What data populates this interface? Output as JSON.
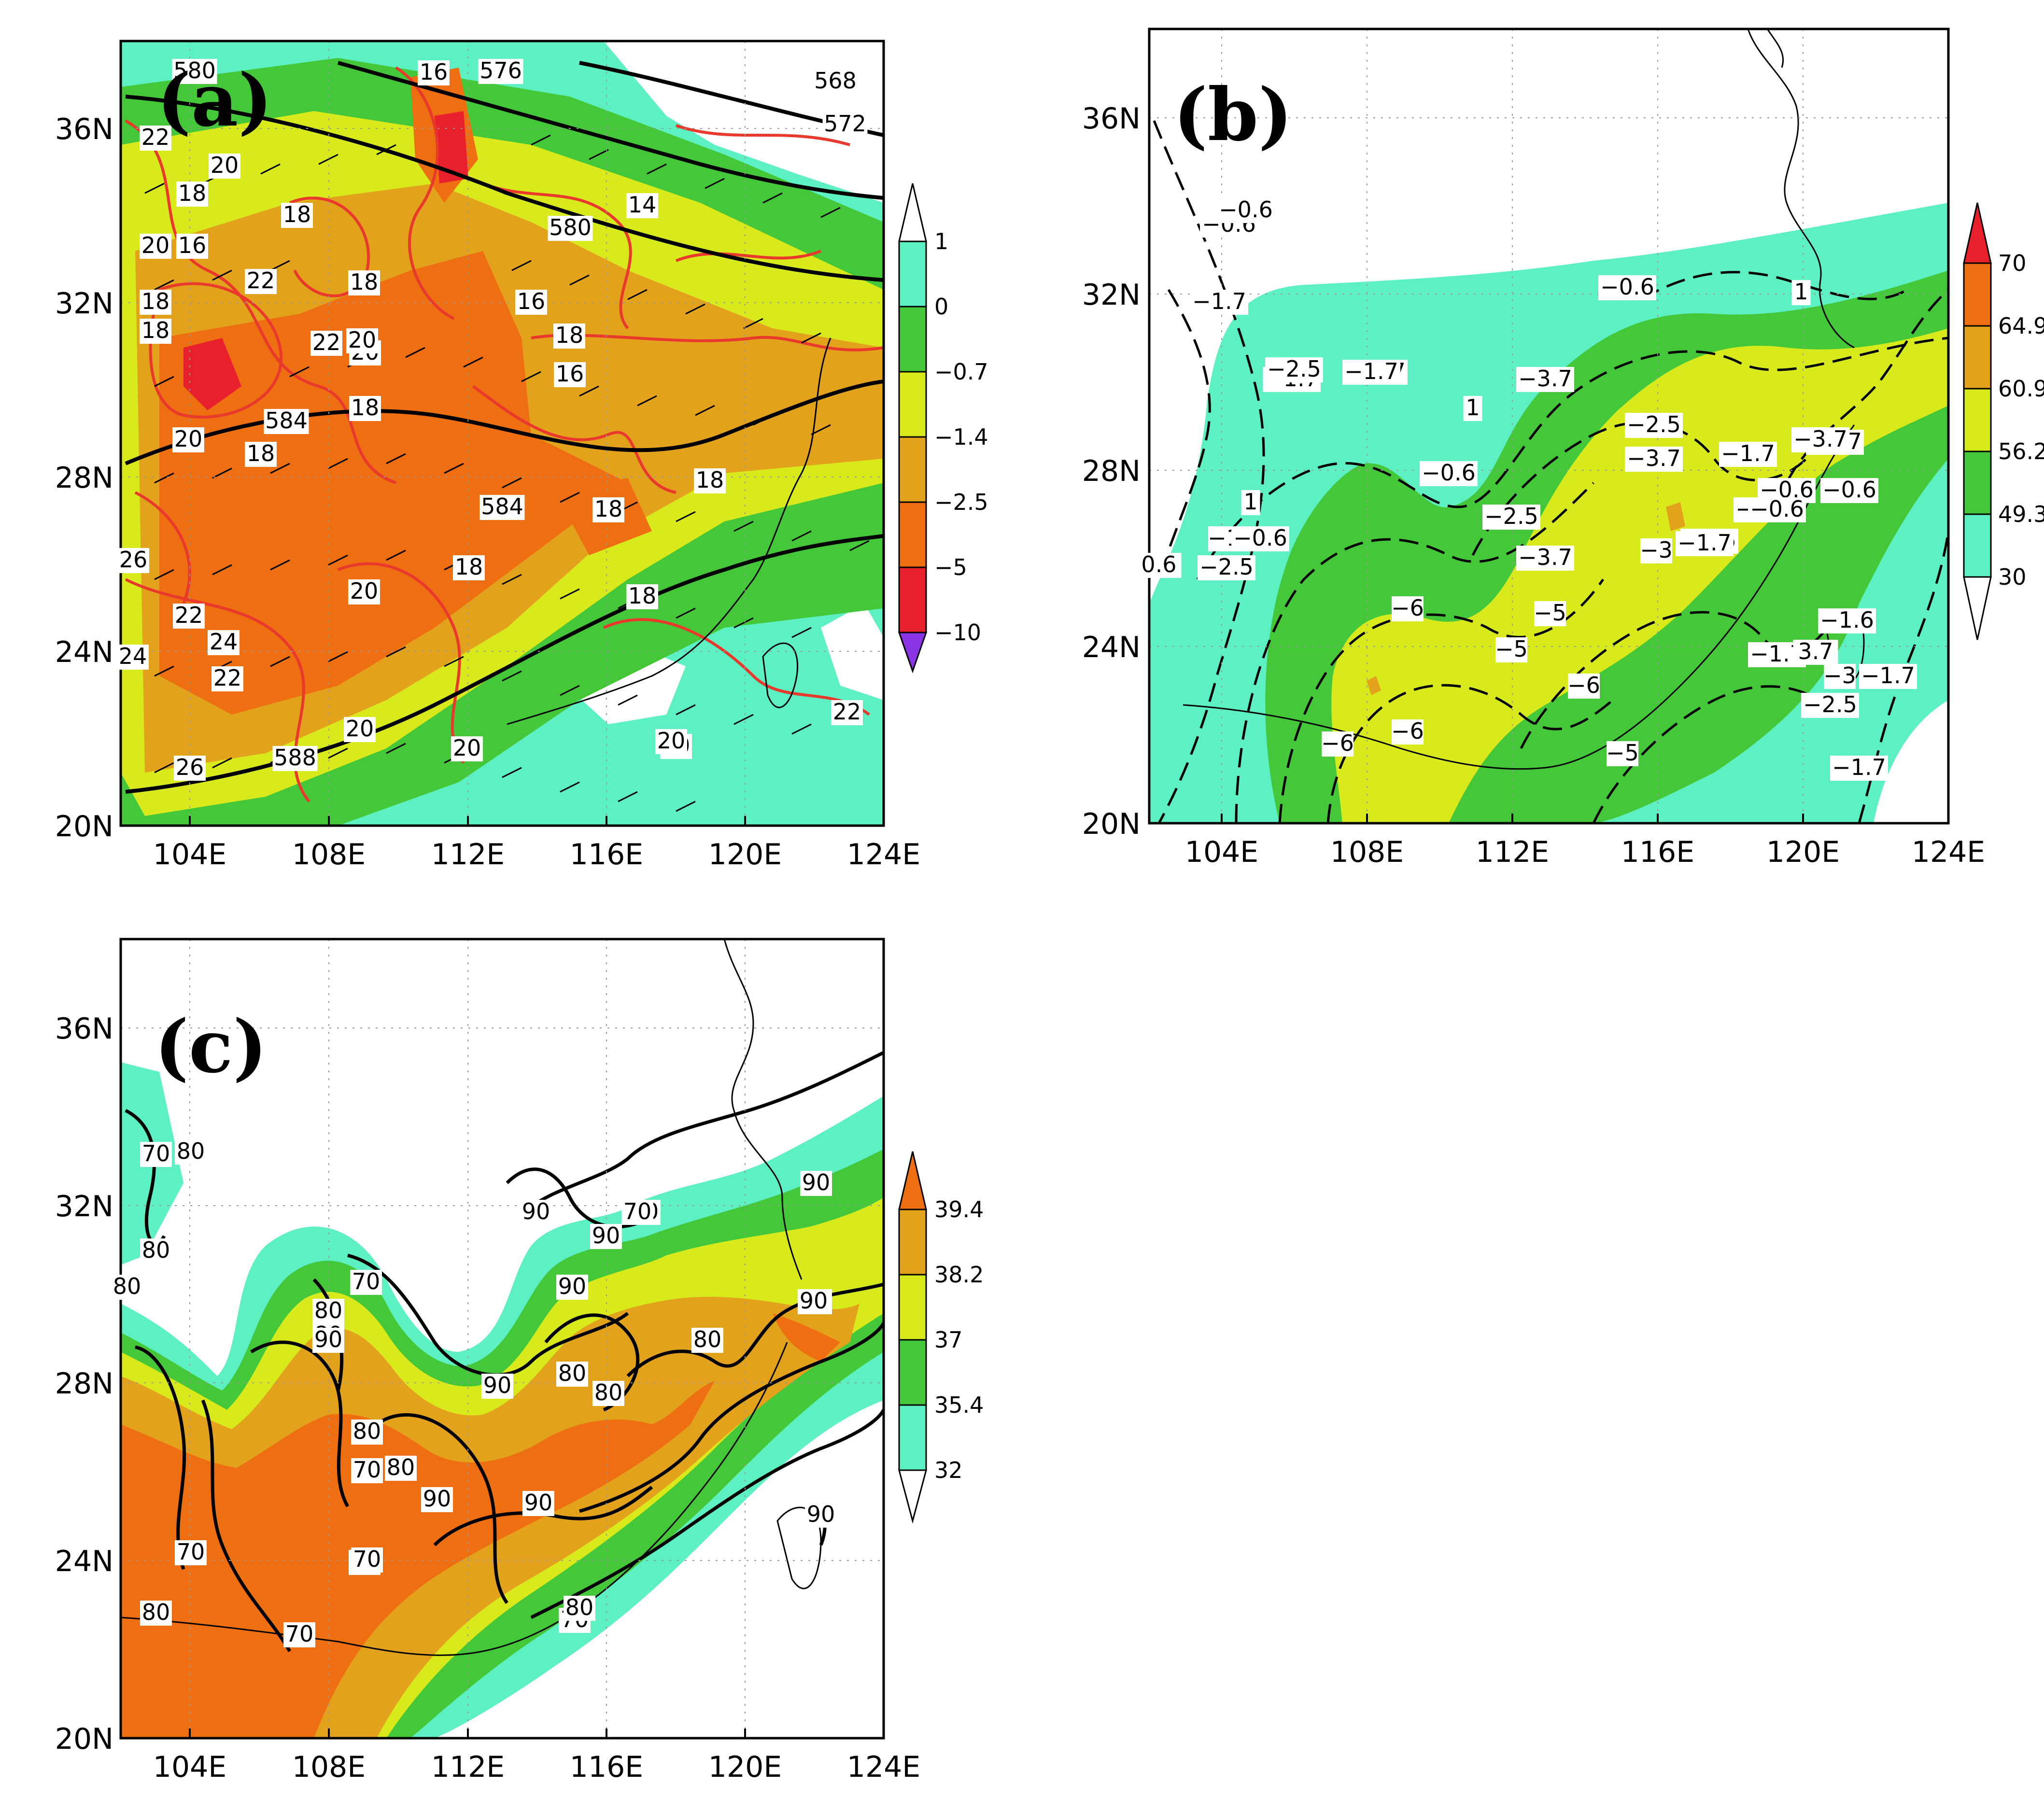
{
  "panels": [
    {
      "id": "a",
      "label": "(a)",
      "x_ticks": [
        "104E",
        "108E",
        "112E",
        "116E",
        "120E",
        "124E"
      ],
      "y_ticks": [
        "20N",
        "24N",
        "28N",
        "32N",
        "36N"
      ],
      "colorbar": {
        "labels": [
          "1",
          "0",
          "−0.7",
          "−1.4",
          "−2.5",
          "−5",
          "−10"
        ],
        "colors": [
          "#5cf0c2",
          "#44c83a",
          "#d9ea1c",
          "#e3a21c",
          "#ee6e12",
          "#e8202c",
          "#8a34e6"
        ],
        "ends": [
          "upper-open-white",
          "lower-purple"
        ]
      },
      "contour_labels_red": [
        "22",
        "20",
        "18",
        "16",
        "20",
        "18",
        "22",
        "18",
        "18",
        "20",
        "22",
        "20",
        "18",
        "18",
        "18",
        "16",
        "18",
        "16",
        "16",
        "14",
        "18",
        "18",
        "18",
        "20",
        "26",
        "22",
        "24",
        "24",
        "26",
        "20",
        "18",
        "20",
        "20",
        "22",
        "20",
        "20",
        "22"
      ],
      "contour_labels_black": [
        "580",
        "576",
        "568",
        "572",
        "580",
        "584",
        "584",
        "588"
      ]
    },
    {
      "id": "b",
      "label": "(b)",
      "x_ticks": [
        "104E",
        "108E",
        "112E",
        "116E",
        "120E",
        "124E"
      ],
      "y_ticks": [
        "20N",
        "24N",
        "28N",
        "32N",
        "36N"
      ],
      "colorbar": {
        "labels": [
          "70",
          "64.9",
          "60.9",
          "56.2",
          "49.3",
          "30"
        ],
        "colors": [
          "#ee6e12",
          "#e3a21c",
          "#d9ea1c",
          "#44c83a",
          "#5cf0c2"
        ],
        "ends": [
          "upper-red",
          "lower-open-white"
        ]
      },
      "contour_labels": [
        "−0.6",
        "−1.7",
        "−0.6",
        "−1.7",
        "−2.5",
        "−1.7",
        "−1.7",
        "−3.7",
        "1",
        "1",
        "−2.5",
        "−3.7",
        "−3.7",
        "−1.7",
        "−3.7",
        "−0.6",
        "−0.6",
        "−0.6",
        "−2.5",
        "−3.7",
        "−1.7",
        "−2.5",
        "−0.6",
        "1",
        "−1",
        "−0.6",
        "−2.5",
        "−3",
        "−1.7",
        "−6",
        "−5",
        "−5",
        "−6",
        "−6",
        "−6",
        "−5",
        "−1.7",
        "3.7",
        "−1.6",
        "−3",
        "−1.7",
        "−2.5",
        "−1.7",
        "−3.7",
        "0.6",
        "−0.6"
      ]
    },
    {
      "id": "c",
      "label": "(c)",
      "x_ticks": [
        "104E",
        "108E",
        "112E",
        "116E",
        "120E",
        "124E"
      ],
      "y_ticks": [
        "20N",
        "24N",
        "28N",
        "32N",
        "36N"
      ],
      "colorbar": {
        "labels": [
          "39.4",
          "38.2",
          "37",
          "35.4",
          "32"
        ],
        "colors": [
          "#ee6e12",
          "#e3a21c",
          "#d9ea1c",
          "#44c83a",
          "#5cf0c2"
        ],
        "ends": [
          "upper-orange",
          "lower-open-white"
        ]
      },
      "contour_labels": [
        "70",
        "80",
        "80",
        "80",
        "90",
        "70",
        "70",
        "90",
        "90",
        "90",
        "80",
        "90",
        "70",
        "80",
        "80",
        "90",
        "80",
        "90",
        "90",
        "80",
        "80",
        "80",
        "90",
        "90",
        "70",
        "70",
        "80",
        "80",
        "70",
        "70",
        "70",
        "80",
        "90"
      ]
    }
  ]
}
